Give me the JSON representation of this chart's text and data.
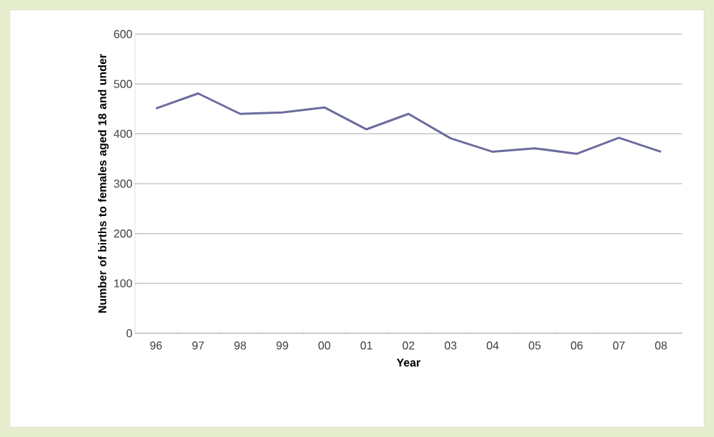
{
  "chart_data": {
    "type": "line",
    "xlabel": "Year",
    "ylabel": "Number of births to females aged 18 and under",
    "categories": [
      "96",
      "97",
      "98",
      "99",
      "00",
      "01",
      "02",
      "03",
      "04",
      "05",
      "06",
      "07",
      "08"
    ],
    "series": [
      {
        "color": "#6b6b9e",
        "values": [
          451,
          481,
          440,
          443,
          453,
          409,
          440,
          391,
          364,
          371,
          360,
          392,
          364
        ]
      }
    ],
    "ylim": [
      0,
      600
    ],
    "yticks": [
      0,
      100,
      200,
      300,
      400,
      500,
      600
    ],
    "grid": "y",
    "marker": "none",
    "line_style": "solid"
  }
}
